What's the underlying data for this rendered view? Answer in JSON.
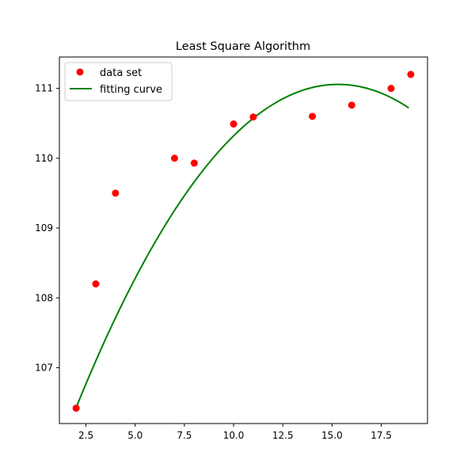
{
  "chart_data": {
    "type": "scatter",
    "title": "Least Square Algorithm",
    "xlabel": "",
    "ylabel": "",
    "xlim": [
      1.15,
      19.85
    ],
    "ylim": [
      106.2,
      111.45
    ],
    "xticks": [
      2.5,
      5.0,
      7.5,
      10.0,
      12.5,
      15.0,
      17.5
    ],
    "xtick_labels": [
      "2.5",
      "5.0",
      "7.5",
      "10.0",
      "12.5",
      "15.0",
      "17.5"
    ],
    "yticks": [
      107,
      108,
      109,
      110,
      111
    ],
    "ytick_labels": [
      "107",
      "108",
      "109",
      "110",
      "111"
    ],
    "grid": false,
    "legend": {
      "position": "top-left"
    },
    "series": [
      {
        "name": "data set",
        "kind": "points",
        "color": "#ff0000",
        "x": [
          2,
          3,
          4,
          7,
          8,
          10,
          11,
          14,
          16,
          18,
          19
        ],
        "y": [
          106.42,
          108.2,
          109.5,
          110.0,
          109.93,
          110.49,
          110.59,
          110.6,
          110.76,
          111.0,
          111.2
        ]
      },
      {
        "name": "fitting curve",
        "kind": "line",
        "color": "#008000",
        "x_range": [
          2.0,
          18.9
        ],
        "poly_coeffs": [
          104.93,
          0.8006,
          -0.02615
        ]
      }
    ]
  }
}
